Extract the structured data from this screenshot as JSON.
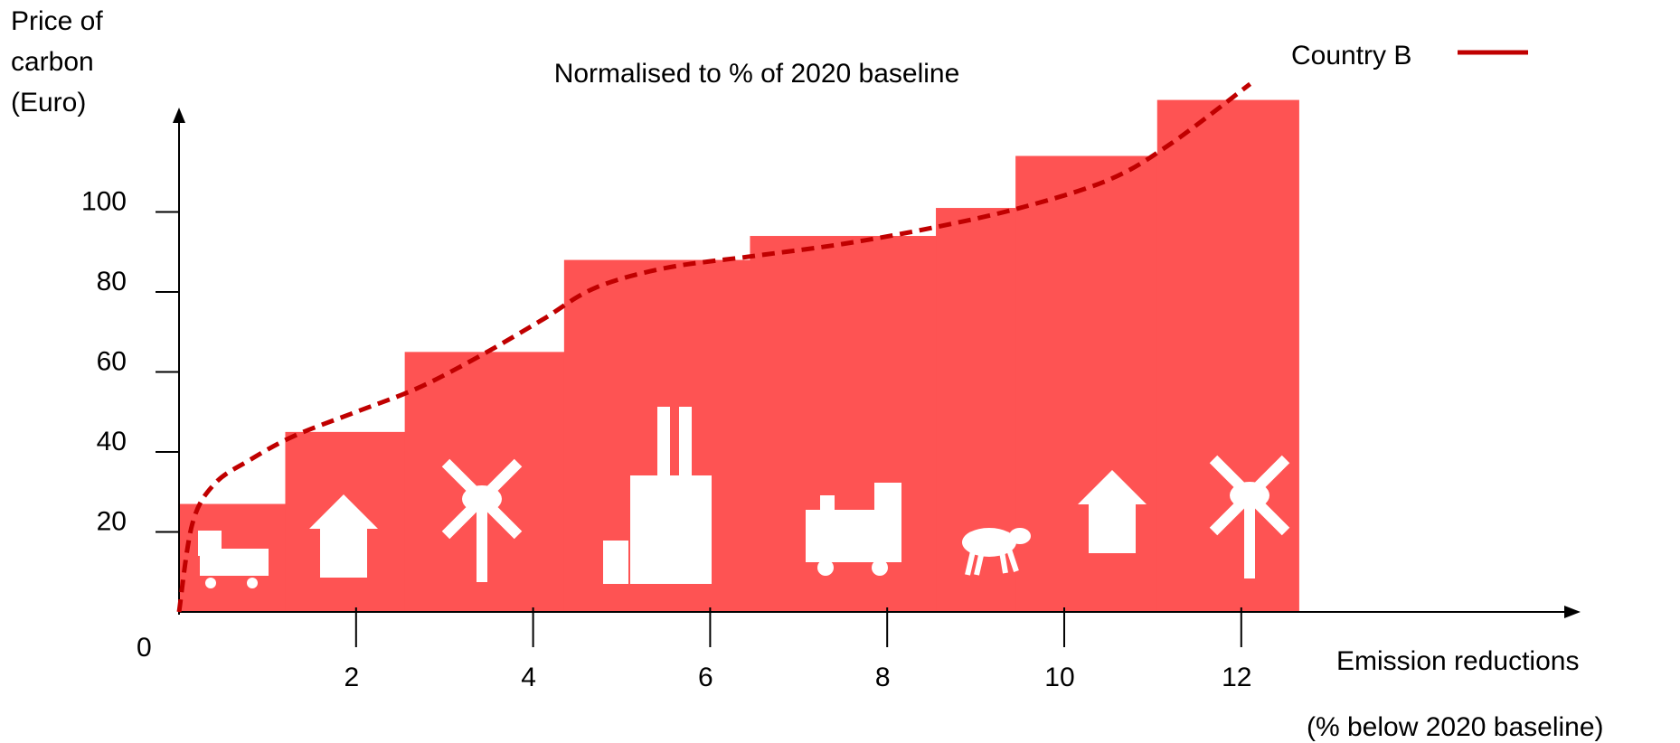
{
  "chart_data": {
    "type": "bar",
    "title": "Normalised to % of 2020 baseline",
    "ylabel_lines": [
      "Price of",
      "carbon",
      "(Euro)"
    ],
    "xlabel": "Emission reductions",
    "xlabel_sub": "(% below 2020 baseline)",
    "origin_label": "0",
    "x_ticks": [
      {
        "value": 2,
        "label": "2"
      },
      {
        "value": 4,
        "label": "4"
      },
      {
        "value": 6,
        "label": "6"
      },
      {
        "value": 8,
        "label": "8"
      },
      {
        "value": 10,
        "label": "10"
      },
      {
        "value": 12,
        "label": "12"
      }
    ],
    "y_ticks": [
      {
        "value": 20,
        "label": "20"
      },
      {
        "value": 40,
        "label": "40"
      },
      {
        "value": 60,
        "label": "60"
      },
      {
        "value": 80,
        "label": "80"
      },
      {
        "value": 100,
        "label": "100"
      }
    ],
    "xlim": [
      0,
      15.7
    ],
    "ylim": [
      0,
      127
    ],
    "bar_color": "#fe5353",
    "line_color": "#c00000",
    "bars": [
      {
        "x0": 0.0,
        "x1": 1.2,
        "value": 27,
        "sector": "truck-icon"
      },
      {
        "x0": 1.2,
        "x1": 2.55,
        "value": 45,
        "sector": "house-icon"
      },
      {
        "x0": 2.55,
        "x1": 4.35,
        "value": 65,
        "sector": "wind-turbine-icon"
      },
      {
        "x0": 4.35,
        "x1": 6.45,
        "value": 88,
        "sector": "factory-icon"
      },
      {
        "x0": 6.45,
        "x1": 8.55,
        "value": 94,
        "sector": "train-icon"
      },
      {
        "x0": 8.55,
        "x1": 9.45,
        "value": 101,
        "sector": "sheep-icon"
      },
      {
        "x0": 9.45,
        "x1": 11.05,
        "value": 114,
        "sector": "house-icon"
      },
      {
        "x0": 11.05,
        "x1": 12.65,
        "value": 128,
        "sector": "wind-turbine-icon"
      }
    ],
    "series": [
      {
        "name": "Country B",
        "style": "dashed",
        "x": [
          0.0,
          0.15,
          0.4,
          0.8,
          1.3,
          2.0,
          2.7,
          3.4,
          4.1,
          4.7,
          5.5,
          6.5,
          7.5,
          8.5,
          9.5,
          10.5,
          11.2,
          12.1
        ],
        "y": [
          0,
          22,
          32,
          38,
          44,
          50,
          56,
          64,
          73,
          81,
          86,
          89,
          92,
          96,
          101,
          108,
          117,
          132
        ]
      }
    ],
    "legend": {
      "position": "top-right",
      "label": "Country B"
    },
    "grid": false
  }
}
